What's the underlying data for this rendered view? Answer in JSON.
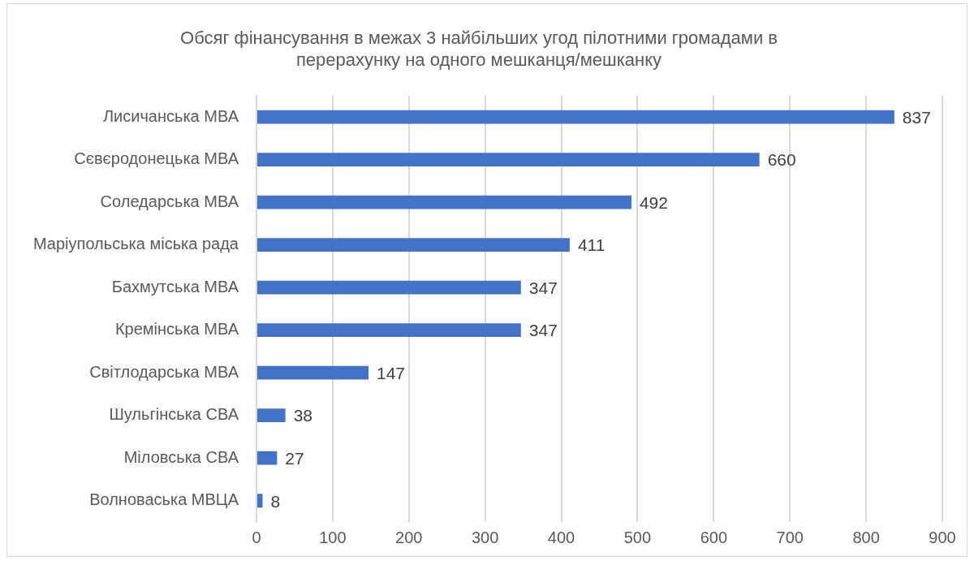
{
  "chart_data": {
    "type": "bar",
    "orientation": "horizontal",
    "title": "Обсяг фінансування в межах 3 найбільших угод пілотними громадами в перерахунку на одного мешканця/мешканку",
    "categories": [
      "Лисичанська МВА",
      "Сєвєродонецька МВА",
      "Соледарська МВА",
      "Маріупольська міська рада",
      "Бахмутська МВА",
      "Кремінська МВА",
      "Світлодарська МВА",
      "Шульгінська СВА",
      "Міловська СВА",
      "Волноваська МВЦА"
    ],
    "values": [
      837,
      660,
      492,
      411,
      347,
      347,
      147,
      38,
      27,
      8
    ],
    "color": "#4472c4",
    "xlim": [
      0,
      900
    ],
    "xticks": [
      0,
      100,
      200,
      300,
      400,
      500,
      600,
      700,
      800,
      900
    ],
    "grid": "x",
    "data_labels": true
  }
}
